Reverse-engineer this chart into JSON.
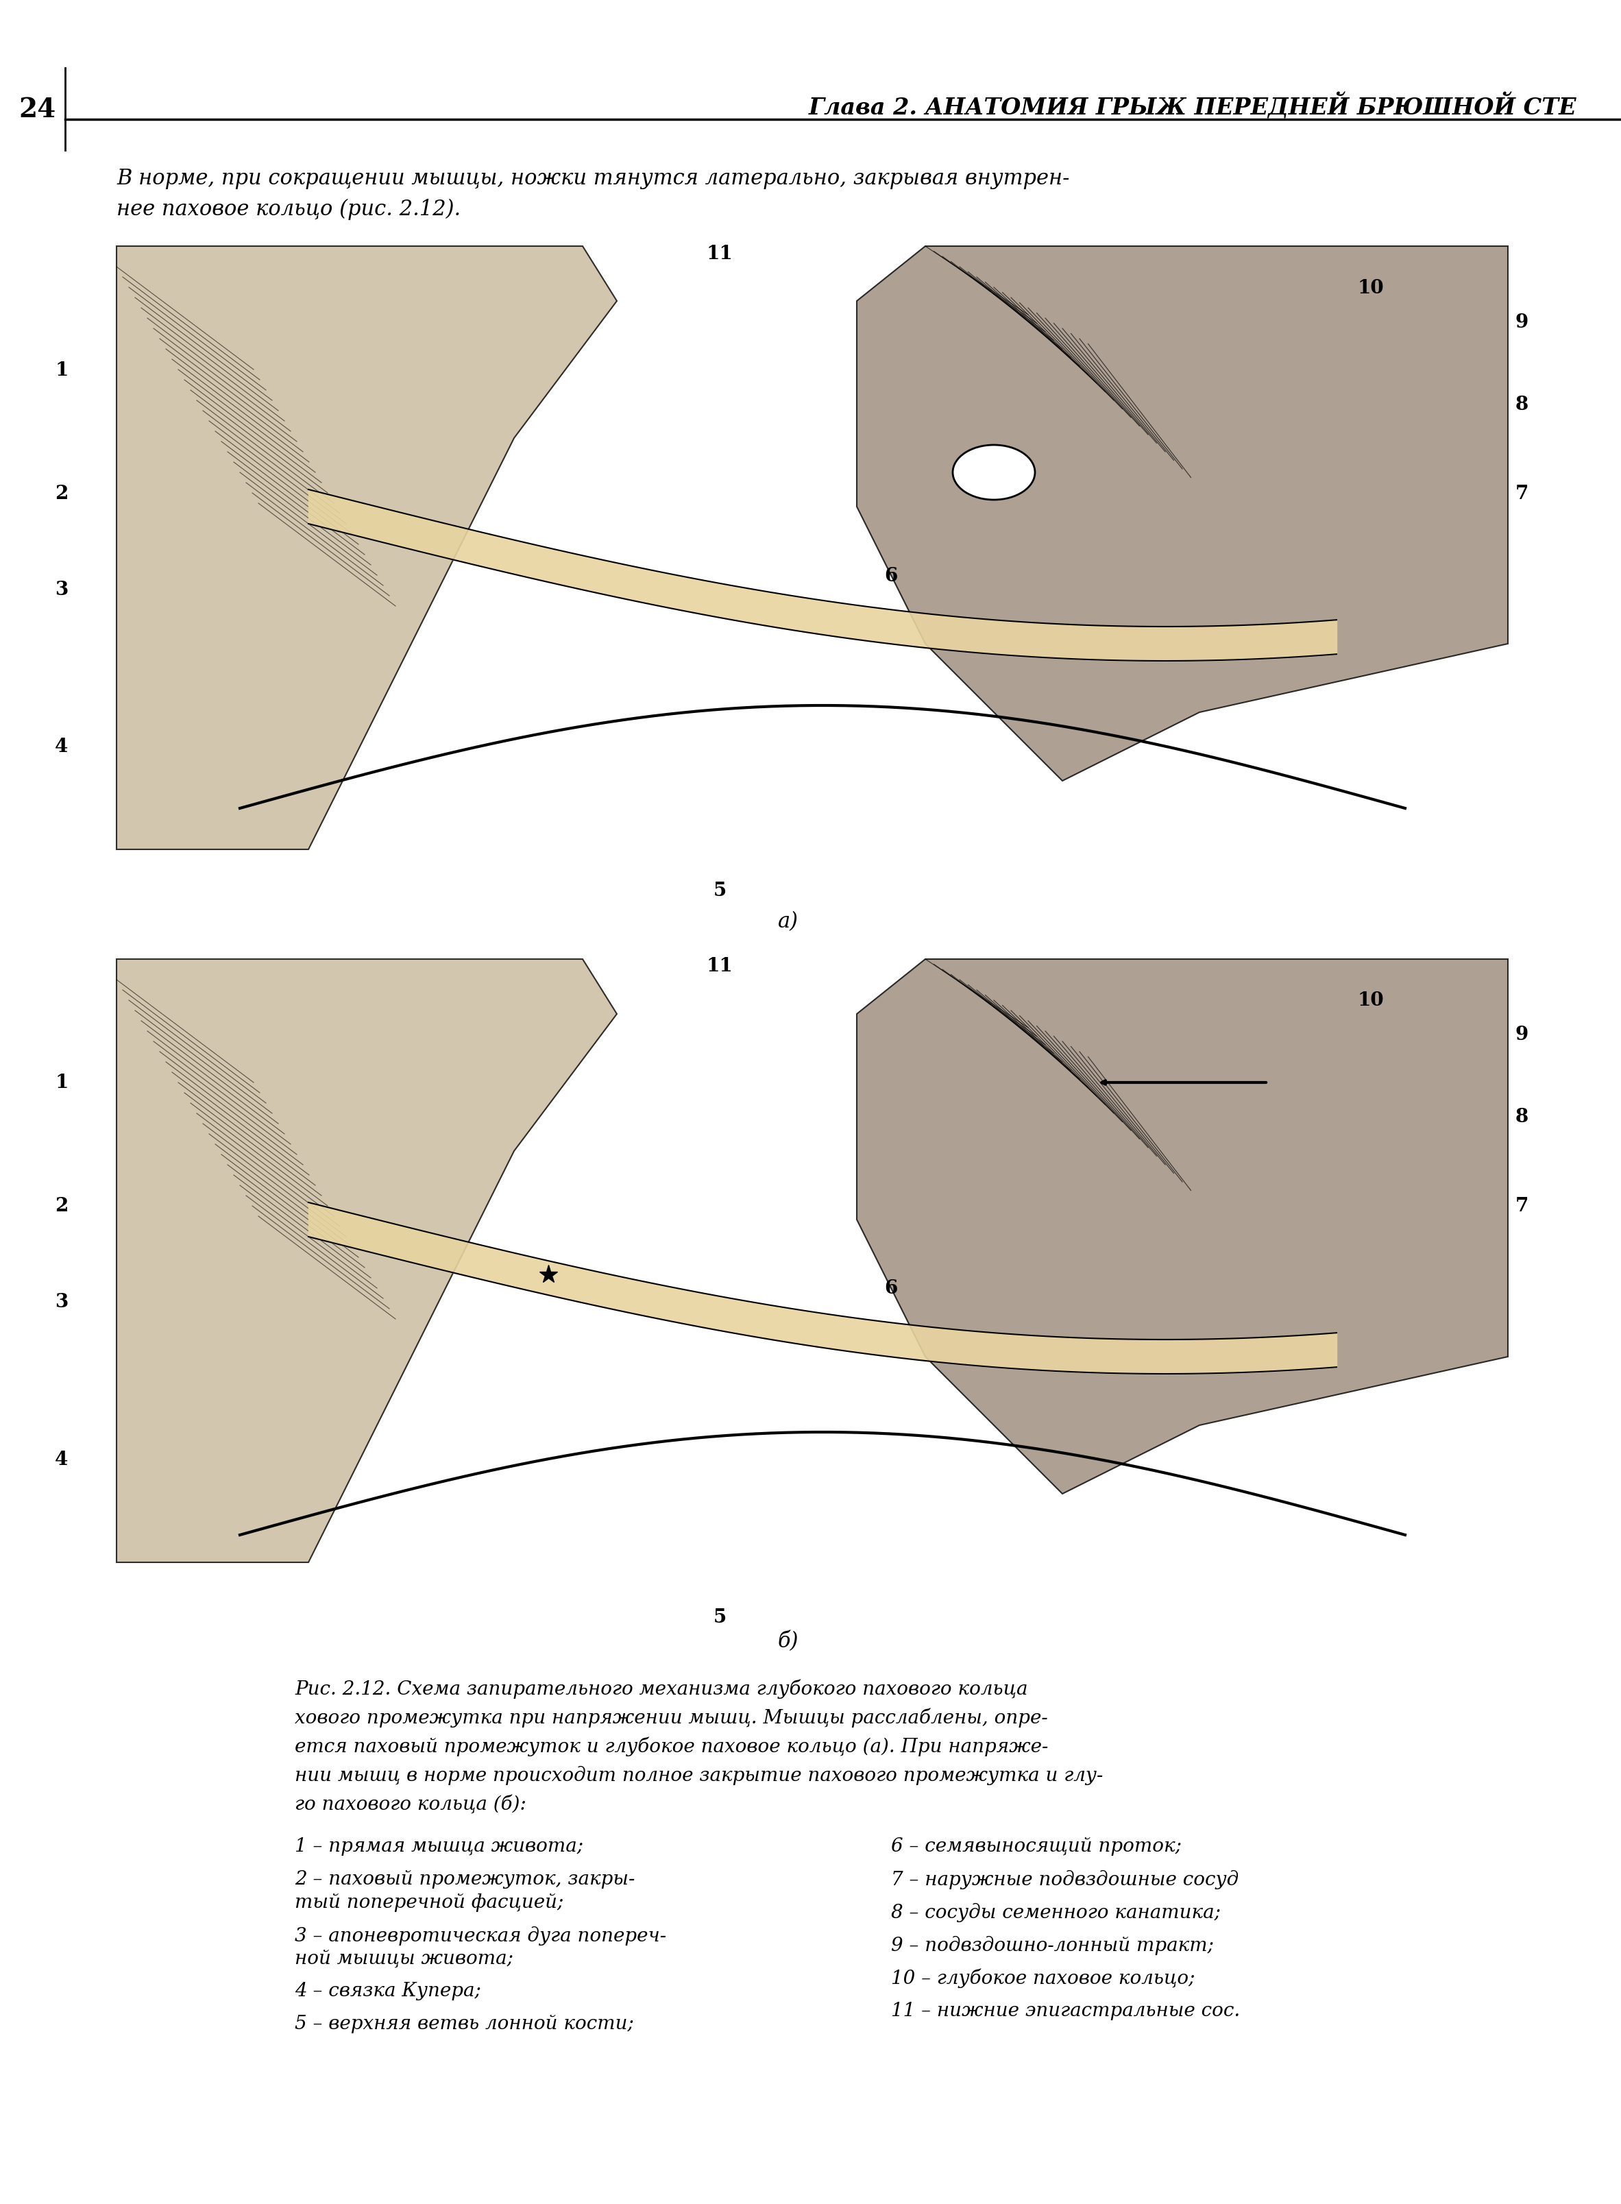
{
  "page_number": "24",
  "header_title": "Глава 2. АНАТОМИЯ ГРЫЖ ПЕРЕДНЕЙ БРЮШНОЙ СТЕ",
  "intro_text_line1": "В норме, при сокращении мышцы, ножки тянутся латерально, закрывая внутрен-",
  "intro_text_line2": "нее паховое кольцо (рис. 2.12).",
  "caption_line1": "Рис. 2.12. Схема запирательного механизма глубокого пахового кольца",
  "caption_line2": "хового промежутка при напряжении мышц. Мышцы расслаблены, опре-",
  "caption_line3": "ется паховый промежуток и глубокое паховое кольцо (а). При напряже-",
  "caption_line4": "нии мышц в норме происходит полное закрытие пахового промежутка и глу-",
  "caption_line5": "го пахового кольца (б):",
  "legend_left": [
    "1 – прямая мышца живота;",
    "2 – паховый промежуток, закры-",
    "тый поперечной фасцией;",
    "3 – апоневротическая дуга попереч-",
    "ной мышцы живота;",
    "4 – связка Купера;",
    "5 – верхняя ветвь лонной кости;"
  ],
  "legend_right": [
    "6 – семявыносящий проток;",
    "7 – наружные подвздошные сосуд",
    "8 – сосуды семенного канатика;",
    "9 – подвздошно-лонный тракт;",
    "10 – глубокое паховое кольцо;",
    "11 – нижние эпигастральные сос."
  ],
  "label_a": "а)",
  "label_b": "б)",
  "bg_color": "#ffffff",
  "text_color": "#000000",
  "image_a_path": null,
  "image_b_path": null
}
